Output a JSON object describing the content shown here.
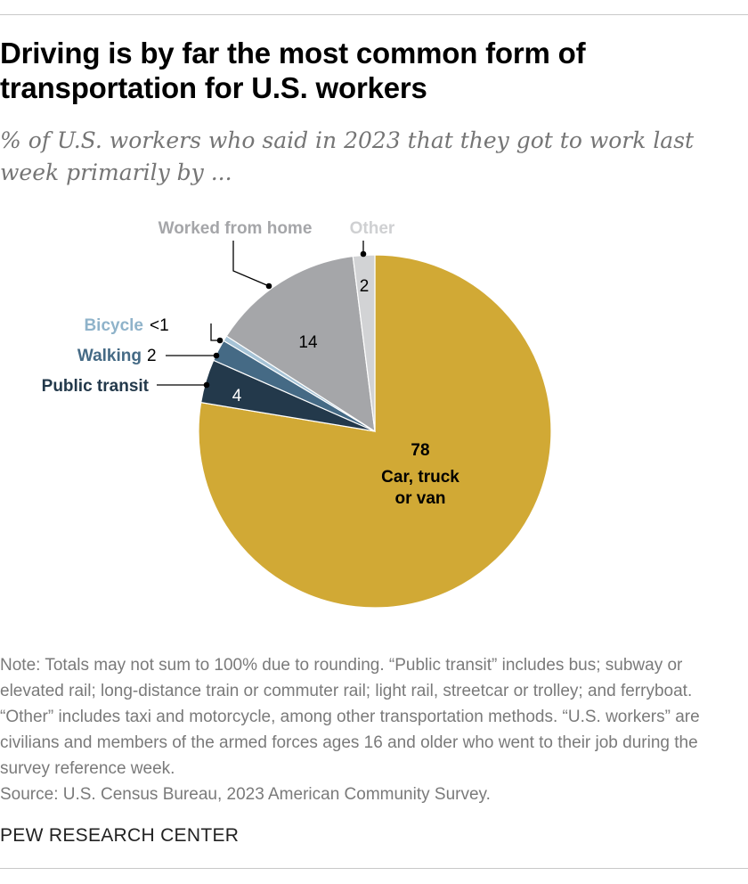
{
  "title": "Driving is by far the most common form of transportation for U.S. workers",
  "subtitle": "% of U.S. workers who said in 2023 that they got to work last week primarily by ...",
  "note": "Note: Totals may not sum to 100% due to rounding. “Public transit” includes bus; subway or elevated rail; long-distance train or commuter rail; light rail, streetcar or trolley; and ferryboat. “Other” includes taxi and motorcycle, among other transportation methods. “U.S. workers” are civilians and members of the armed forces ages 16 and older who went to their job during the survey reference week.",
  "source": "Source: U.S. Census Bureau, 2023 American Community Survey.",
  "brand": "PEW RESEARCH CENTER",
  "chart_data": {
    "type": "pie",
    "slices": [
      {
        "label": "Car, truck or van",
        "value": 78,
        "value_label": "78",
        "color": "#d1a935"
      },
      {
        "label": "Public transit",
        "value": 4,
        "value_label": "4",
        "color": "#23394b"
      },
      {
        "label": "Walking",
        "value": 2,
        "value_label": "2",
        "color": "#456a85"
      },
      {
        "label": "Bicycle",
        "value": 0.5,
        "value_label": "<1",
        "color": "#a6c3d6"
      },
      {
        "label": "Worked from home",
        "value": 14,
        "value_label": "14",
        "color": "#a5a6a9"
      },
      {
        "label": "Other",
        "value": 2,
        "value_label": "2",
        "color": "#d2d3d5"
      }
    ]
  }
}
